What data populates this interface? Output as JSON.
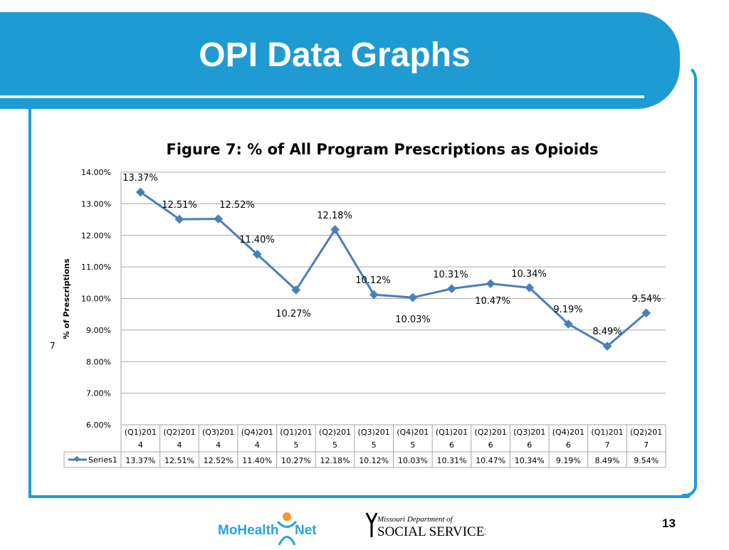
{
  "slide": {
    "title": "OPI Data Graphs",
    "page_number": "13"
  },
  "logos": {
    "mohealthnet": "MoHealthNet",
    "dss_line1": "Missouri Department of",
    "dss_line2": "SOCIAL SERVICES"
  },
  "colors": {
    "header": "#1f9bd3",
    "series": "#4a7ebb"
  },
  "chart_data": {
    "type": "line",
    "title": "Figure 7: % of All Program Prescriptions as Opioids",
    "ylabel": "% of Prescriptions",
    "stray_label": "7",
    "ylim": [
      6,
      14
    ],
    "yticks": [
      "6.00%",
      "7.00%",
      "8.00%",
      "9.00%",
      "10.00%",
      "11.00%",
      "12.00%",
      "13.00%",
      "14.00%"
    ],
    "grid": true,
    "legend": "data-table",
    "categories": [
      [
        "(Q1)201",
        "4"
      ],
      [
        "(Q2)201",
        "4"
      ],
      [
        "(Q3)201",
        "4"
      ],
      [
        "(Q4)201",
        "4"
      ],
      [
        "(Q1)201",
        "5"
      ],
      [
        "(Q2)201",
        "5"
      ],
      [
        "(Q3)201",
        "5"
      ],
      [
        "(Q4)201",
        "5"
      ],
      [
        "(Q1)201",
        "6"
      ],
      [
        "(Q2)201",
        "6"
      ],
      [
        "(Q3)201",
        "6"
      ],
      [
        "(Q4)201",
        "6"
      ],
      [
        "(Q1)201",
        "7"
      ],
      [
        "(Q2)201",
        "7"
      ]
    ],
    "series": [
      {
        "name": "Series1",
        "values": [
          13.37,
          12.51,
          12.52,
          11.4,
          10.27,
          12.18,
          10.12,
          10.03,
          10.31,
          10.47,
          10.34,
          9.19,
          8.49,
          9.54
        ],
        "labels": [
          "13.37%",
          "12.51%",
          "12.52%",
          "11.40%",
          "10.27%",
          "12.18%",
          "10.12%",
          "10.03%",
          "10.31%",
          "10.47%",
          "10.34%",
          "9.19%",
          "8.49%",
          "9.54%"
        ]
      }
    ]
  }
}
